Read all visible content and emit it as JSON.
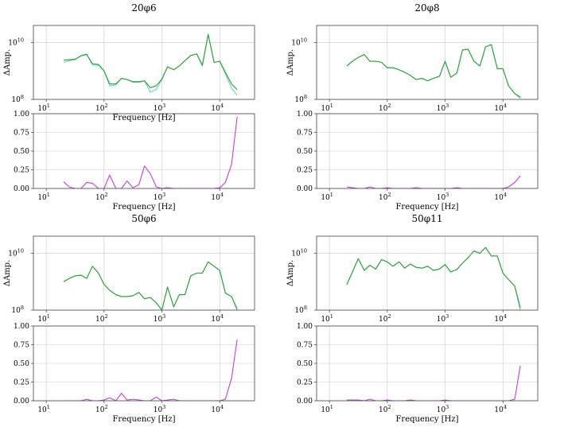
{
  "colors": {
    "green": "#2ca02c",
    "cyan": "#5fd9c5",
    "magenta": "#c23fd6"
  },
  "chart_data": [
    {
      "type": "line",
      "title": "20φ6",
      "xlabel": "Frequency [Hz]",
      "ylabel": "ΔAmp.",
      "x_scale": "log",
      "xlim": [
        6,
        40000
      ],
      "x_tick_labels": [
        "10",
        "10",
        "10",
        "10"
      ],
      "x_tick_exponents": [
        "1",
        "2",
        "3",
        "4"
      ],
      "y_scale": "log",
      "ylim": [
        100000000,
        40000000000
      ],
      "y_tick_labels": [
        "10",
        "10"
      ],
      "y_tick_exponents": [
        "8",
        "10"
      ],
      "x": [
        20,
        25,
        31.5,
        40,
        50,
        63,
        80,
        100,
        125,
        160,
        200,
        250,
        315,
        400,
        500,
        630,
        800,
        1000,
        1250,
        1600,
        2000,
        2500,
        3150,
        4000,
        5000,
        6300,
        8000,
        10000,
        12500,
        16000,
        20000
      ],
      "series": [
        {
          "values": [
            2000000000.0,
            2300000000.0,
            2500000000.0,
            3500000000.0,
            4000000000.0,
            1600000000.0,
            1600000000.0,
            1000000000.0,
            300000000.0,
            320000000.0,
            550000000.0,
            500000000.0,
            400000000.0,
            400000000.0,
            450000000.0,
            180000000.0,
            220000000.0,
            500000000.0,
            1400000000.0,
            1100000000.0,
            1500000000.0,
            2300000000.0,
            3500000000.0,
            4000000000.0,
            1500000000.0,
            20000000000.0,
            2000000000.0,
            2200000000.0,
            800000000.0,
            250000000.0,
            140000000.0
          ]
        },
        {
          "values": [
            2400000000.0,
            2500000000.0,
            2600000000.0,
            3400000000.0,
            3800000000.0,
            1800000000.0,
            1700000000.0,
            1000000000.0,
            350000000.0,
            350000000.0,
            550000000.0,
            500000000.0,
            420000000.0,
            420000000.0,
            450000000.0,
            260000000.0,
            300000000.0,
            520000000.0,
            1400000000.0,
            1100000000.0,
            1500000000.0,
            2300000000.0,
            3500000000.0,
            4000000000.0,
            1600000000.0,
            19000000000.0,
            2000000000.0,
            2200000000.0,
            900000000.0,
            350000000.0,
            220000000.0
          ]
        }
      ]
    },
    {
      "type": "line",
      "xlabel": "Frequency [Hz]",
      "x_scale": "log",
      "xlim": [
        6,
        40000
      ],
      "x_tick_labels": [
        "10",
        "10",
        "10",
        "10"
      ],
      "x_tick_exponents": [
        "1",
        "2",
        "3",
        "4"
      ],
      "ylim": [
        0,
        1
      ],
      "y_tick_labels": [
        "0.00",
        "0.25",
        "0.50",
        "0.75",
        "1.00"
      ],
      "x": [
        20,
        25,
        31.5,
        40,
        50,
        63,
        80,
        100,
        125,
        160,
        200,
        250,
        315,
        400,
        500,
        630,
        800,
        1000,
        1250,
        1600,
        2000,
        2500,
        3150,
        4000,
        5000,
        6300,
        8000,
        10000,
        12500,
        16000,
        20000
      ],
      "series": [
        {
          "values": [
            0.09,
            0.02,
            0,
            0,
            0.08,
            0.07,
            0,
            0,
            0.18,
            0,
            0,
            0.1,
            0.01,
            0.05,
            0.3,
            0.2,
            0.02,
            0,
            0.01,
            0,
            0,
            0,
            0,
            0,
            0,
            0,
            0,
            0.01,
            0.08,
            0.32,
            0.96
          ]
        }
      ]
    },
    {
      "type": "line",
      "title": "20φ8",
      "ylabel": "ΔAmp.",
      "x_scale": "log",
      "xlim": [
        6,
        40000
      ],
      "x_tick_labels": [
        "10",
        "10",
        "10",
        "10"
      ],
      "x_tick_exponents": [
        "1",
        "2",
        "3",
        "4"
      ],
      "y_scale": "log",
      "ylim": [
        100000000,
        40000000000
      ],
      "y_tick_labels": [
        "10",
        "10"
      ],
      "y_tick_exponents": [
        "8",
        "10"
      ],
      "x": [
        20,
        25,
        31.5,
        40,
        50,
        63,
        80,
        100,
        125,
        160,
        200,
        250,
        315,
        400,
        500,
        630,
        800,
        1000,
        1250,
        1600,
        2000,
        2500,
        3150,
        4000,
        5000,
        6300,
        8000,
        10000,
        12500,
        16000,
        20000
      ],
      "series": [
        {
          "values": [
            1500000000.0,
            2200000000.0,
            3000000000.0,
            3800000000.0,
            2200000000.0,
            2200000000.0,
            2000000000.0,
            1300000000.0,
            1300000000.0,
            1100000000.0,
            900000000.0,
            700000000.0,
            500000000.0,
            550000000.0,
            450000000.0,
            550000000.0,
            650000000.0,
            2200000000.0,
            600000000.0,
            850000000.0,
            5500000000.0,
            5800000000.0,
            2200000000.0,
            1500000000.0,
            7000000000.0,
            8500000000.0,
            1200000000.0,
            1200000000.0,
            300000000.0,
            160000000.0,
            110000000.0
          ]
        },
        {
          "values": [
            1500000000.0,
            2200000000.0,
            3000000000.0,
            3800000000.0,
            2200000000.0,
            2200000000.0,
            2000000000.0,
            1300000000.0,
            1300000000.0,
            1100000000.0,
            900000000.0,
            700000000.0,
            500000000.0,
            550000000.0,
            450000000.0,
            550000000.0,
            650000000.0,
            2200000000.0,
            600000000.0,
            850000000.0,
            5500000000.0,
            5800000000.0,
            2200000000.0,
            1500000000.0,
            7000000000.0,
            8500000000.0,
            1200000000.0,
            1200000000.0,
            300000000.0,
            160000000.0,
            120000000.0
          ]
        }
      ]
    },
    {
      "type": "line",
      "xlabel": "Frequency [Hz]",
      "x_scale": "log",
      "xlim": [
        6,
        40000
      ],
      "x_tick_labels": [
        "10",
        "10",
        "10",
        "10"
      ],
      "x_tick_exponents": [
        "1",
        "2",
        "3",
        "4"
      ],
      "ylim": [
        0,
        1
      ],
      "y_tick_labels": [
        "0.00",
        "0.25",
        "0.50",
        "0.75",
        "1.00"
      ],
      "x": [
        20,
        25,
        31.5,
        40,
        50,
        63,
        80,
        100,
        125,
        160,
        200,
        250,
        315,
        400,
        500,
        630,
        800,
        1000,
        1250,
        1600,
        2000,
        2500,
        3150,
        4000,
        5000,
        6300,
        8000,
        10000,
        12500,
        16000,
        20000
      ],
      "series": [
        {
          "values": [
            0.02,
            0.01,
            0,
            0,
            0.02,
            0,
            0,
            0.01,
            0,
            0,
            0,
            0,
            0.01,
            0,
            0,
            0,
            0,
            0,
            0,
            0.01,
            0,
            0,
            0,
            0,
            0,
            0,
            0,
            0,
            0.02,
            0.08,
            0.17
          ]
        }
      ]
    },
    {
      "type": "line",
      "title": "50φ6",
      "ylabel": "ΔAmp.",
      "x_scale": "log",
      "xlim": [
        6,
        40000
      ],
      "x_tick_labels": [
        "10",
        "10",
        "10",
        "10"
      ],
      "x_tick_exponents": [
        "1",
        "2",
        "3",
        "4"
      ],
      "y_scale": "log",
      "ylim": [
        100000000,
        40000000000
      ],
      "y_tick_labels": [
        "10",
        "10"
      ],
      "y_tick_exponents": [
        "8",
        "10"
      ],
      "x": [
        20,
        25,
        31.5,
        40,
        50,
        63,
        80,
        100,
        125,
        160,
        200,
        250,
        315,
        400,
        500,
        630,
        800,
        1000,
        1250,
        1600,
        2000,
        2500,
        3150,
        4000,
        5000,
        6300,
        8000,
        10000,
        12500,
        16000,
        20000
      ],
      "series": [
        {
          "values": [
            1000000000.0,
            1300000000.0,
            1600000000.0,
            1700000000.0,
            1300000000.0,
            3500000000.0,
            2000000000.0,
            800000000.0,
            500000000.0,
            350000000.0,
            300000000.0,
            300000000.0,
            320000000.0,
            420000000.0,
            250000000.0,
            280000000.0,
            180000000.0,
            100000000.0,
            650000000.0,
            130000000.0,
            350000000.0,
            350000000.0,
            1600000000.0,
            2000000000.0,
            2000000000.0,
            5000000000.0,
            3500000000.0,
            2500000000.0,
            400000000.0,
            300000000.0,
            100000000.0
          ]
        },
        {
          "values": [
            1000000000.0,
            1300000000.0,
            1600000000.0,
            1700000000.0,
            1300000000.0,
            3500000000.0,
            2000000000.0,
            800000000.0,
            500000000.0,
            350000000.0,
            300000000.0,
            300000000.0,
            320000000.0,
            420000000.0,
            250000000.0,
            280000000.0,
            180000000.0,
            100000000.0,
            650000000.0,
            130000000.0,
            350000000.0,
            350000000.0,
            1600000000.0,
            2000000000.0,
            2000000000.0,
            5000000000.0,
            3500000000.0,
            2500000000.0,
            400000000.0,
            300000000.0,
            110000000.0
          ]
        }
      ]
    },
    {
      "type": "line",
      "xlabel": "Frequency [Hz]",
      "x_scale": "log",
      "xlim": [
        6,
        40000
      ],
      "x_tick_labels": [
        "10",
        "10",
        "10",
        "10"
      ],
      "x_tick_exponents": [
        "1",
        "2",
        "3",
        "4"
      ],
      "ylim": [
        0,
        1
      ],
      "y_tick_labels": [
        "0.00",
        "0.25",
        "0.50",
        "0.75",
        "1.00"
      ],
      "x": [
        20,
        25,
        31.5,
        40,
        50,
        63,
        80,
        100,
        125,
        160,
        200,
        250,
        315,
        400,
        500,
        630,
        800,
        1000,
        1250,
        1600,
        2000,
        2500,
        3150,
        4000,
        5000,
        6300,
        8000,
        10000,
        12500,
        16000,
        20000
      ],
      "series": [
        {
          "values": [
            0,
            0,
            0,
            0,
            0.02,
            0,
            0,
            0.01,
            0.04,
            0,
            0.1,
            0.01,
            0.02,
            0.01,
            0,
            0,
            0.05,
            0,
            0.01,
            0.02,
            0,
            0,
            0,
            0,
            0,
            0,
            0,
            0,
            0.02,
            0.3,
            0.82
          ]
        }
      ]
    },
    {
      "type": "line",
      "title": "50φ11",
      "ylabel": "ΔAmp.",
      "x_scale": "log",
      "xlim": [
        6,
        40000
      ],
      "x_tick_labels": [
        "10",
        "10",
        "10",
        "10"
      ],
      "x_tick_exponents": [
        "1",
        "2",
        "3",
        "4"
      ],
      "y_scale": "log",
      "ylim": [
        100000000,
        40000000000
      ],
      "y_tick_labels": [
        "10",
        "10"
      ],
      "y_tick_exponents": [
        "8",
        "10"
      ],
      "x": [
        20,
        25,
        31.5,
        40,
        50,
        63,
        80,
        100,
        125,
        160,
        200,
        250,
        315,
        400,
        500,
        630,
        800,
        1000,
        1250,
        1600,
        2000,
        2500,
        3150,
        4000,
        5000,
        6300,
        8000,
        10000,
        12500,
        16000,
        20000
      ],
      "series": [
        {
          "values": [
            800000000.0,
            2200000000.0,
            6500000000.0,
            2500000000.0,
            3800000000.0,
            2800000000.0,
            6000000000.0,
            5000000000.0,
            3500000000.0,
            5000000000.0,
            3000000000.0,
            4200000000.0,
            3200000000.0,
            3000000000.0,
            3500000000.0,
            2500000000.0,
            2800000000.0,
            4000000000.0,
            2200000000.0,
            2700000000.0,
            4500000000.0,
            7000000000.0,
            12000000000.0,
            10000000000.0,
            16000000000.0,
            8000000000.0,
            8000000000.0,
            2000000000.0,
            1200000000.0,
            700000000.0,
            100000000.0
          ]
        },
        {
          "values": [
            800000000.0,
            2200000000.0,
            6500000000.0,
            2500000000.0,
            3800000000.0,
            2800000000.0,
            6000000000.0,
            5000000000.0,
            3500000000.0,
            5000000000.0,
            3000000000.0,
            4200000000.0,
            3200000000.0,
            3000000000.0,
            3500000000.0,
            2500000000.0,
            2800000000.0,
            4000000000.0,
            2200000000.0,
            2700000000.0,
            4500000000.0,
            7000000000.0,
            12000000000.0,
            10000000000.0,
            16000000000.0,
            8000000000.0,
            8000000000.0,
            2000000000.0,
            1200000000.0,
            700000000.0,
            120000000.0
          ]
        }
      ]
    },
    {
      "type": "line",
      "xlabel": "Frequency [Hz]",
      "x_scale": "log",
      "xlim": [
        6,
        40000
      ],
      "x_tick_labels": [
        "10",
        "10",
        "10",
        "10"
      ],
      "x_tick_exponents": [
        "1",
        "2",
        "3",
        "4"
      ],
      "ylim": [
        0,
        1
      ],
      "y_tick_labels": [
        "0.00",
        "0.25",
        "0.50",
        "0.75",
        "1.00"
      ],
      "x": [
        20,
        25,
        31.5,
        40,
        50,
        63,
        80,
        100,
        125,
        160,
        200,
        250,
        315,
        400,
        500,
        630,
        800,
        1000,
        1250,
        1600,
        2000,
        2500,
        3150,
        4000,
        5000,
        6300,
        8000,
        10000,
        12500,
        16000,
        20000
      ],
      "series": [
        {
          "values": [
            0.01,
            0.01,
            0.01,
            0,
            0.02,
            0,
            0,
            0.01,
            0,
            0,
            0,
            0.01,
            0,
            0,
            0,
            0,
            0,
            0.01,
            0,
            0,
            0,
            0,
            0,
            0,
            0,
            0,
            0,
            0,
            0,
            0.02,
            0.47
          ]
        }
      ]
    }
  ]
}
